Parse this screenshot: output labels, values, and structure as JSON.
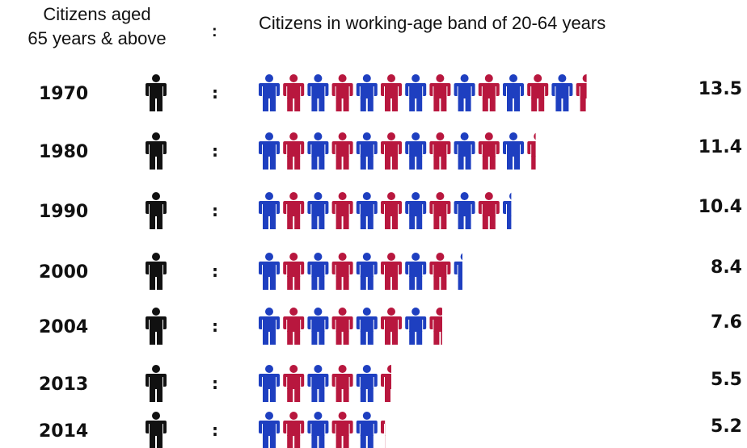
{
  "header": {
    "left_line1": "Citizens aged",
    "left_line2": "65 years & above",
    "colon": ":",
    "right": "Citizens in working-age band of 20-64 years"
  },
  "colors": {
    "elderly": "#111111",
    "worker_a": "#1e3fc0",
    "worker_b": "#b8173e"
  },
  "icons": {
    "elderly": "person-icon",
    "worker": "person-icon"
  },
  "separator": ":",
  "chart_data": {
    "type": "pictogram",
    "title": "",
    "xlabel": "",
    "ylabel": "",
    "categories": [
      "1970",
      "1980",
      "1990",
      "2000",
      "2004",
      "2013",
      "2014"
    ],
    "series": [
      {
        "name": "Citizens aged 65 years & above",
        "values": [
          1,
          1,
          1,
          1,
          1,
          1,
          1
        ]
      },
      {
        "name": "Citizens in working-age band of 20-64 years",
        "values": [
          13.5,
          11.4,
          10.4,
          8.4,
          7.6,
          5.5,
          5.2
        ]
      }
    ],
    "value_labels": [
      "13.5",
      "11.4",
      "10.4",
      "8.4",
      "7.6",
      "5.5",
      "5.2"
    ]
  }
}
